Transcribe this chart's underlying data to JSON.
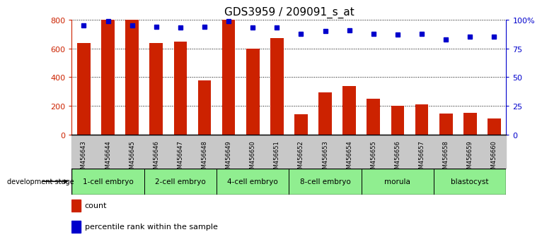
{
  "title": "GDS3959 / 209091_s_at",
  "samples": [
    "GSM456643",
    "GSM456644",
    "GSM456645",
    "GSM456646",
    "GSM456647",
    "GSM456648",
    "GSM456649",
    "GSM456650",
    "GSM456651",
    "GSM456652",
    "GSM456653",
    "GSM456654",
    "GSM456655",
    "GSM456656",
    "GSM456657",
    "GSM456658",
    "GSM456659",
    "GSM456660"
  ],
  "counts": [
    640,
    800,
    800,
    640,
    650,
    380,
    800,
    600,
    670,
    140,
    295,
    340,
    250,
    200,
    210,
    145,
    150,
    110
  ],
  "percentile_ranks": [
    95,
    99,
    95,
    94,
    93,
    94,
    99,
    93,
    93,
    88,
    90,
    91,
    88,
    87,
    88,
    83,
    85,
    85
  ],
  "bar_color": "#cc2200",
  "dot_color": "#0000cc",
  "ylim_left": [
    0,
    800
  ],
  "ylim_right": [
    0,
    100
  ],
  "yticks_left": [
    0,
    200,
    400,
    600,
    800
  ],
  "yticks_right": [
    0,
    25,
    50,
    75,
    100
  ],
  "ytick_labels_right": [
    "0",
    "25",
    "50",
    "75",
    "100%"
  ],
  "stages": [
    {
      "label": "1-cell embryo",
      "start": 0,
      "end": 3
    },
    {
      "label": "2-cell embryo",
      "start": 3,
      "end": 6
    },
    {
      "label": "4-cell embryo",
      "start": 6,
      "end": 9
    },
    {
      "label": "8-cell embryo",
      "start": 9,
      "end": 12
    },
    {
      "label": "morula",
      "start": 12,
      "end": 15
    },
    {
      "label": "blastocyst",
      "start": 15,
      "end": 18
    }
  ],
  "stage_color": "#90ee90",
  "xtick_bg_color": "#c8c8c8",
  "legend_count_label": "count",
  "legend_percentile_label": "percentile rank within the sample",
  "dev_stage_label": "development stage",
  "bar_width": 0.55,
  "title_fontsize": 11,
  "bar_color_left_axis": "#cc2200",
  "dot_color_right_axis": "#0000cc"
}
